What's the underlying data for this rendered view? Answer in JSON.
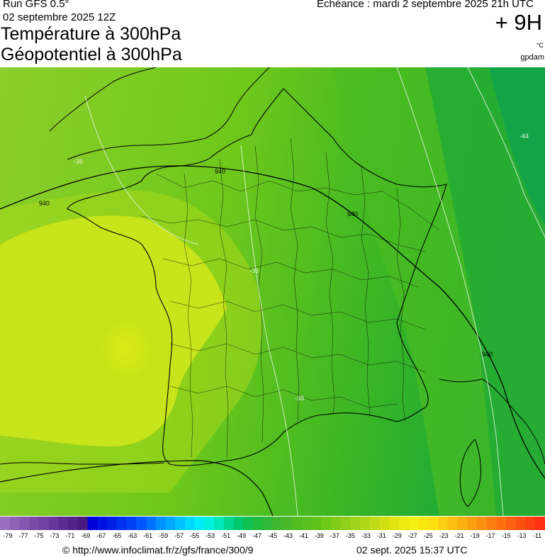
{
  "header": {
    "run": "Run GFS 0.5°",
    "run_date": "02 septembre 2025 12Z",
    "title_line1": "Température à 300hPa",
    "title_line2": "Géopotentiel à 300hPa",
    "echeance": "Echéance : mardi 2 septembre 2025 21h UTC",
    "lead": "+ 9H",
    "unit": "°C",
    "source": "gpdam"
  },
  "map": {
    "isotherm_labels": [
      "-36",
      "-36",
      "-38",
      "-44"
    ],
    "geopotential_labels": [
      "940",
      "940",
      "940",
      "940"
    ]
  },
  "colorbar": {
    "ticks": [
      "-79",
      "-77",
      "-75",
      "-73",
      "-71",
      "-69",
      "-67",
      "-65",
      "-63",
      "-61",
      "-59",
      "-57",
      "-55",
      "-53",
      "-51",
      "-49",
      "-47",
      "-45",
      "-43",
      "-41",
      "-39",
      "-37",
      "-35",
      "-33",
      "-31",
      "-29",
      "-27",
      "-25",
      "-23",
      "-21",
      "-19",
      "-17",
      "-15",
      "-13",
      "-11"
    ],
    "colors": [
      "#9a6fc0",
      "#8f62b8",
      "#8656b0",
      "#7b4aa8",
      "#7240a0",
      "#683698",
      "#5e2c90",
      "#542288",
      "#4a1a80",
      "#0000d8",
      "#0010e0",
      "#0020e8",
      "#0030f0",
      "#0040f8",
      "#0056ff",
      "#0070ff",
      "#0090ff",
      "#00a8ff",
      "#00c0ff",
      "#00d8ff",
      "#00ecf8",
      "#00f0e0",
      "#00e8b8",
      "#00d890",
      "#00c870",
      "#10c050",
      "#20bc40",
      "#30b838",
      "#40b830",
      "#48b828",
      "#50bc20",
      "#58c020",
      "#60c418",
      "#70c818",
      "#80cc18",
      "#90d018",
      "#a0d418",
      "#b0d818",
      "#c0dc18",
      "#d0e010",
      "#e0e410",
      "#ecea10",
      "#f4f010",
      "#f8e810",
      "#fce010",
      "#fcd010",
      "#fcc010",
      "#fcb010",
      "#fca010",
      "#fc9010",
      "#fc8010",
      "#fc7010",
      "#fc6010",
      "#fc5010",
      "#fc4010",
      "#fc3010"
    ]
  },
  "footer": {
    "credit": "© http://www.infoclimat.fr/z/gfs/france/300/9",
    "stamp": "02 sept. 2025 15:37 UTC"
  }
}
